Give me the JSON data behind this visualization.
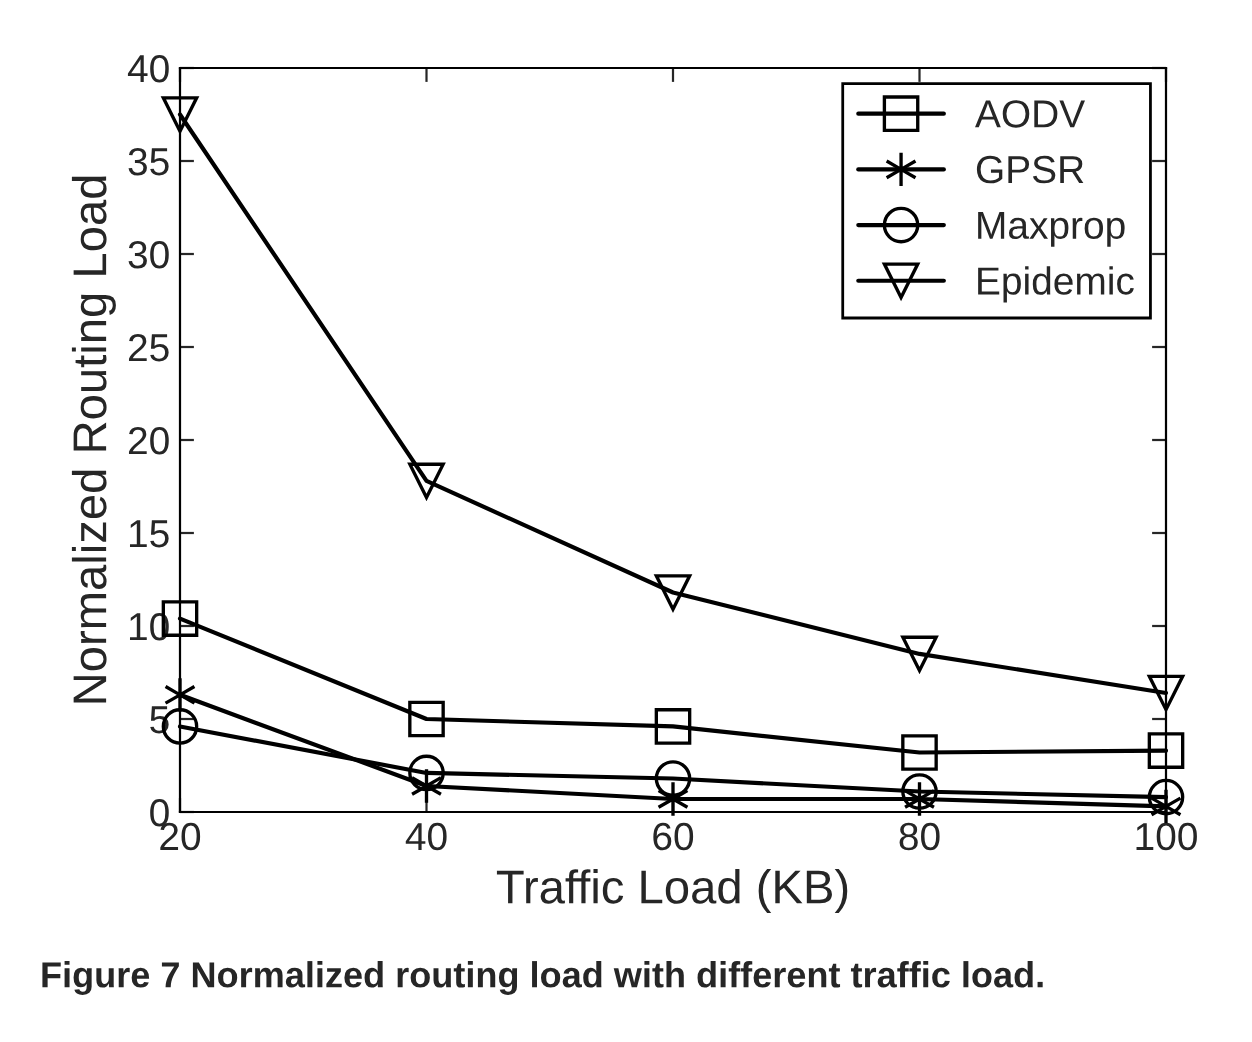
{
  "chart_data": {
    "type": "line",
    "xlabel": "Traffic Load (KB)",
    "ylabel": "Normalized Routing Load",
    "x": [
      20,
      40,
      60,
      80,
      100
    ],
    "series": [
      {
        "name": "AODV",
        "color": "#000000",
        "marker": "square",
        "values": [
          10.4,
          5.0,
          4.6,
          3.2,
          3.3
        ]
      },
      {
        "name": "GPSR",
        "color": "#000000",
        "marker": "cross",
        "values": [
          6.3,
          1.4,
          0.7,
          0.7,
          0.3
        ]
      },
      {
        "name": "Maxprop",
        "color": "#000000",
        "marker": "circle",
        "values": [
          4.6,
          2.1,
          1.8,
          1.1,
          0.8
        ]
      },
      {
        "name": "Epidemic",
        "color": "#000000",
        "marker": "triangle",
        "values": [
          37.5,
          17.8,
          11.8,
          8.5,
          6.4
        ]
      }
    ],
    "xlim": [
      20,
      100
    ],
    "xticks": [
      20,
      40,
      60,
      80,
      100
    ],
    "ylim": [
      0,
      40
    ],
    "yticks": [
      0,
      5,
      10,
      15,
      20,
      25,
      30,
      35,
      40
    ],
    "grid": false,
    "legend": "top right",
    "line_style": "solid",
    "annotations": [
      "Figure 7 Normalized routing load with different traffic load."
    ]
  }
}
